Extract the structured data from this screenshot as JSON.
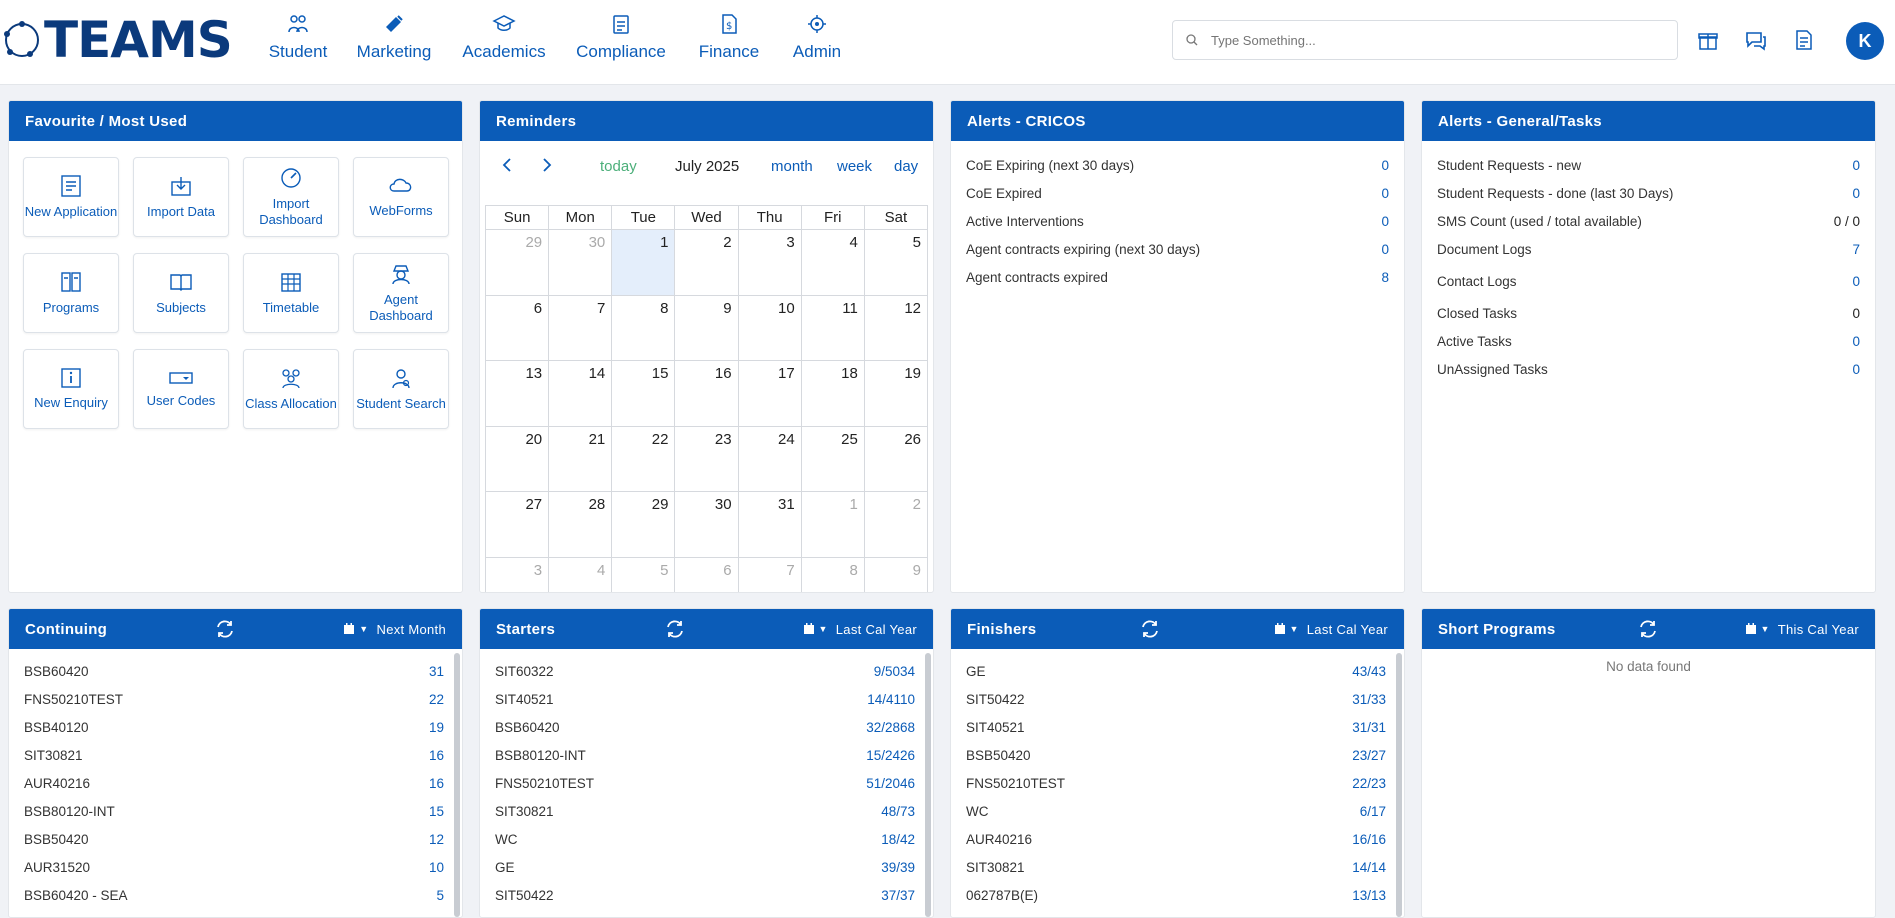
{
  "header": {
    "logo_text": "TEAMS",
    "nav": [
      {
        "label": "Student",
        "icon": "student-icon"
      },
      {
        "label": "Marketing",
        "icon": "marketing-icon"
      },
      {
        "label": "Academics",
        "icon": "academics-icon"
      },
      {
        "label": "Compliance",
        "icon": "compliance-icon"
      },
      {
        "label": "Finance",
        "icon": "finance-icon"
      },
      {
        "label": "Admin",
        "icon": "admin-icon"
      }
    ],
    "search_placeholder": "Type Something...",
    "avatar_initial": "K"
  },
  "favourites": {
    "title": "Favourite / Most Used",
    "items": [
      {
        "label": "New Application",
        "icon": "new-application-icon"
      },
      {
        "label": "Import Data",
        "icon": "import-data-icon"
      },
      {
        "label": "Import Dashboard",
        "icon": "import-dashboard-icon"
      },
      {
        "label": "WebForms",
        "icon": "webforms-icon"
      },
      {
        "label": "Programs",
        "icon": "programs-icon"
      },
      {
        "label": "Subjects",
        "icon": "subjects-icon"
      },
      {
        "label": "Timetable",
        "icon": "timetable-icon"
      },
      {
        "label": "Agent Dashboard",
        "icon": "agent-dashboard-icon"
      },
      {
        "label": "New Enquiry",
        "icon": "new-enquiry-icon"
      },
      {
        "label": "User Codes",
        "icon": "user-codes-icon"
      },
      {
        "label": "Class Allocation",
        "icon": "class-allocation-icon"
      },
      {
        "label": "Student Search",
        "icon": "student-search-icon"
      }
    ]
  },
  "reminders": {
    "title": "Reminders",
    "today_label": "today",
    "calendar_title": "July 2025",
    "views": {
      "month": "month",
      "week": "week",
      "day": "day"
    },
    "weekdays": [
      "Sun",
      "Mon",
      "Tue",
      "Wed",
      "Thu",
      "Fri",
      "Sat"
    ],
    "weeks": [
      [
        "29",
        "30",
        "1",
        "2",
        "3",
        "4",
        "5"
      ],
      [
        "6",
        "7",
        "8",
        "9",
        "10",
        "11",
        "12"
      ],
      [
        "13",
        "14",
        "15",
        "16",
        "17",
        "18",
        "19"
      ],
      [
        "20",
        "21",
        "22",
        "23",
        "24",
        "25",
        "26"
      ],
      [
        "27",
        "28",
        "29",
        "30",
        "31",
        "1",
        "2"
      ],
      [
        "3",
        "4",
        "5",
        "6",
        "7",
        "8",
        "9"
      ]
    ]
  },
  "alerts_cricos": {
    "title": "Alerts - CRICOS",
    "rows": [
      {
        "label": "CoE Expiring (next 30 days)",
        "value": "0"
      },
      {
        "label": "CoE Expired",
        "value": "0"
      },
      {
        "label": "Active Interventions",
        "value": "0"
      },
      {
        "label": "Agent contracts expiring (next 30 days)",
        "value": "0"
      },
      {
        "label": "Agent contracts expired",
        "value": "8"
      }
    ]
  },
  "alerts_general": {
    "title": "Alerts - General/Tasks",
    "rows": [
      {
        "label": "Student Requests - new",
        "value": "0"
      },
      {
        "label": "Student Requests - done (last 30 Days)",
        "value": "0"
      },
      {
        "label": "SMS Count (used / total available)",
        "value": "0 / 0"
      },
      {
        "label": "Document Logs",
        "value": "7"
      },
      {
        "label": "Contact Logs",
        "value": "0"
      },
      {
        "label": "Closed Tasks",
        "value": "0"
      },
      {
        "label": "Active Tasks",
        "value": "0"
      },
      {
        "label": "UnAssigned Tasks",
        "value": "0"
      }
    ]
  },
  "continuing": {
    "title": "Continuing",
    "period": "Next Month",
    "rows": [
      {
        "label": "BSB60420",
        "value": "31"
      },
      {
        "label": "FNS50210TEST",
        "value": "22"
      },
      {
        "label": "BSB40120",
        "value": "19"
      },
      {
        "label": "SIT30821",
        "value": "16"
      },
      {
        "label": "AUR40216",
        "value": "16"
      },
      {
        "label": "BSB80120-INT",
        "value": "15"
      },
      {
        "label": "BSB50420",
        "value": "12"
      },
      {
        "label": "AUR31520",
        "value": "10"
      },
      {
        "label": "BSB60420 - SEA",
        "value": "5"
      }
    ]
  },
  "starters": {
    "title": "Starters",
    "period": "Last Cal Year",
    "rows": [
      {
        "label": "SIT60322",
        "value": "9/5034"
      },
      {
        "label": "SIT40521",
        "value": "14/4110"
      },
      {
        "label": "BSB60420",
        "value": "32/2868"
      },
      {
        "label": "BSB80120-INT",
        "value": "15/2426"
      },
      {
        "label": "FNS50210TEST",
        "value": "51/2046"
      },
      {
        "label": "SIT30821",
        "value": "48/73"
      },
      {
        "label": "WC",
        "value": "18/42"
      },
      {
        "label": "GE",
        "value": "39/39"
      },
      {
        "label": "SIT50422",
        "value": "37/37"
      }
    ]
  },
  "finishers": {
    "title": "Finishers",
    "period": "Last Cal Year",
    "rows": [
      {
        "label": "GE",
        "value": "43/43"
      },
      {
        "label": "SIT50422",
        "value": "31/33"
      },
      {
        "label": "SIT40521",
        "value": "31/31"
      },
      {
        "label": "BSB50420",
        "value": "23/27"
      },
      {
        "label": "FNS50210TEST",
        "value": "22/23"
      },
      {
        "label": "WC",
        "value": "6/17"
      },
      {
        "label": "AUR40216",
        "value": "16/16"
      },
      {
        "label": "SIT30821",
        "value": "14/14"
      },
      {
        "label": "062787B(E)",
        "value": "13/13"
      }
    ]
  },
  "short_programs": {
    "title": "Short Programs",
    "period": "This Cal Year",
    "empty_text": "No data found"
  }
}
